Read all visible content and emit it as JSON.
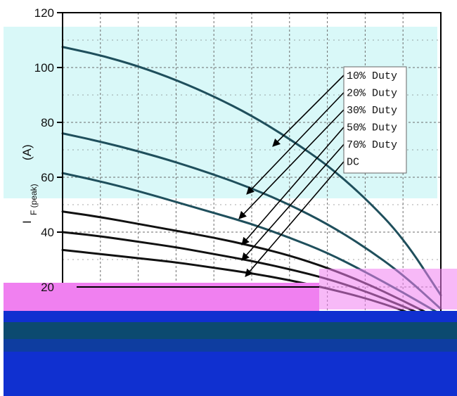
{
  "chart_data": {
    "type": "line",
    "title": "",
    "xlabel": "",
    "ylabel_main": "I",
    "ylabel_sub": "F (peak)",
    "ylabel_unit": "(A)",
    "ylim": [
      0,
      120
    ],
    "yticks": [
      20,
      40,
      60,
      80,
      100,
      120
    ],
    "x_divisions": 10,
    "grid": true,
    "legend_placement": "right",
    "colors": {
      "curve": "#111111",
      "teal_curve": "#1f4f5c",
      "cyan_band": "#d9f8f8",
      "magenta_band": "#f080f0",
      "blue_band": "#1030d0",
      "navy_band": "#0c4a70",
      "grid": "#6b6b6b"
    },
    "series": [
      {
        "name": "10% Duty",
        "values": [
          107.5,
          104.5,
          100.5,
          95.5,
          89.5,
          82.5,
          74.0,
          64.5,
          52.5,
          38.0,
          17.0
        ]
      },
      {
        "name": "20% Duty",
        "values": [
          76.0,
          73.0,
          69.5,
          65.5,
          61.0,
          56.0,
          50.0,
          43.0,
          34.5,
          24.5,
          12.0
        ]
      },
      {
        "name": "30% Duty",
        "values": [
          61.5,
          58.5,
          55.0,
          51.0,
          47.0,
          43.0,
          38.0,
          32.5,
          25.5,
          18.0,
          10.0
        ]
      },
      {
        "name": "50% Duty",
        "values": [
          47.5,
          45.5,
          43.0,
          40.5,
          38.0,
          35.0,
          31.5,
          27.0,
          21.5,
          15.0,
          8.0
        ]
      },
      {
        "name": "70% Duty",
        "values": [
          40.0,
          38.5,
          36.5,
          34.5,
          32.0,
          29.5,
          26.5,
          23.0,
          18.5,
          13.0,
          7.0
        ]
      },
      {
        "name": "DC",
        "values": [
          33.5,
          32.0,
          30.5,
          29.0,
          27.0,
          25.0,
          22.5,
          19.5,
          16.0,
          11.5,
          6.0
        ]
      }
    ],
    "legend_entries": [
      "10% Duty",
      "20% Duty",
      "30% Duty",
      "50% Duty",
      "70% Duty",
      "DC"
    ]
  }
}
